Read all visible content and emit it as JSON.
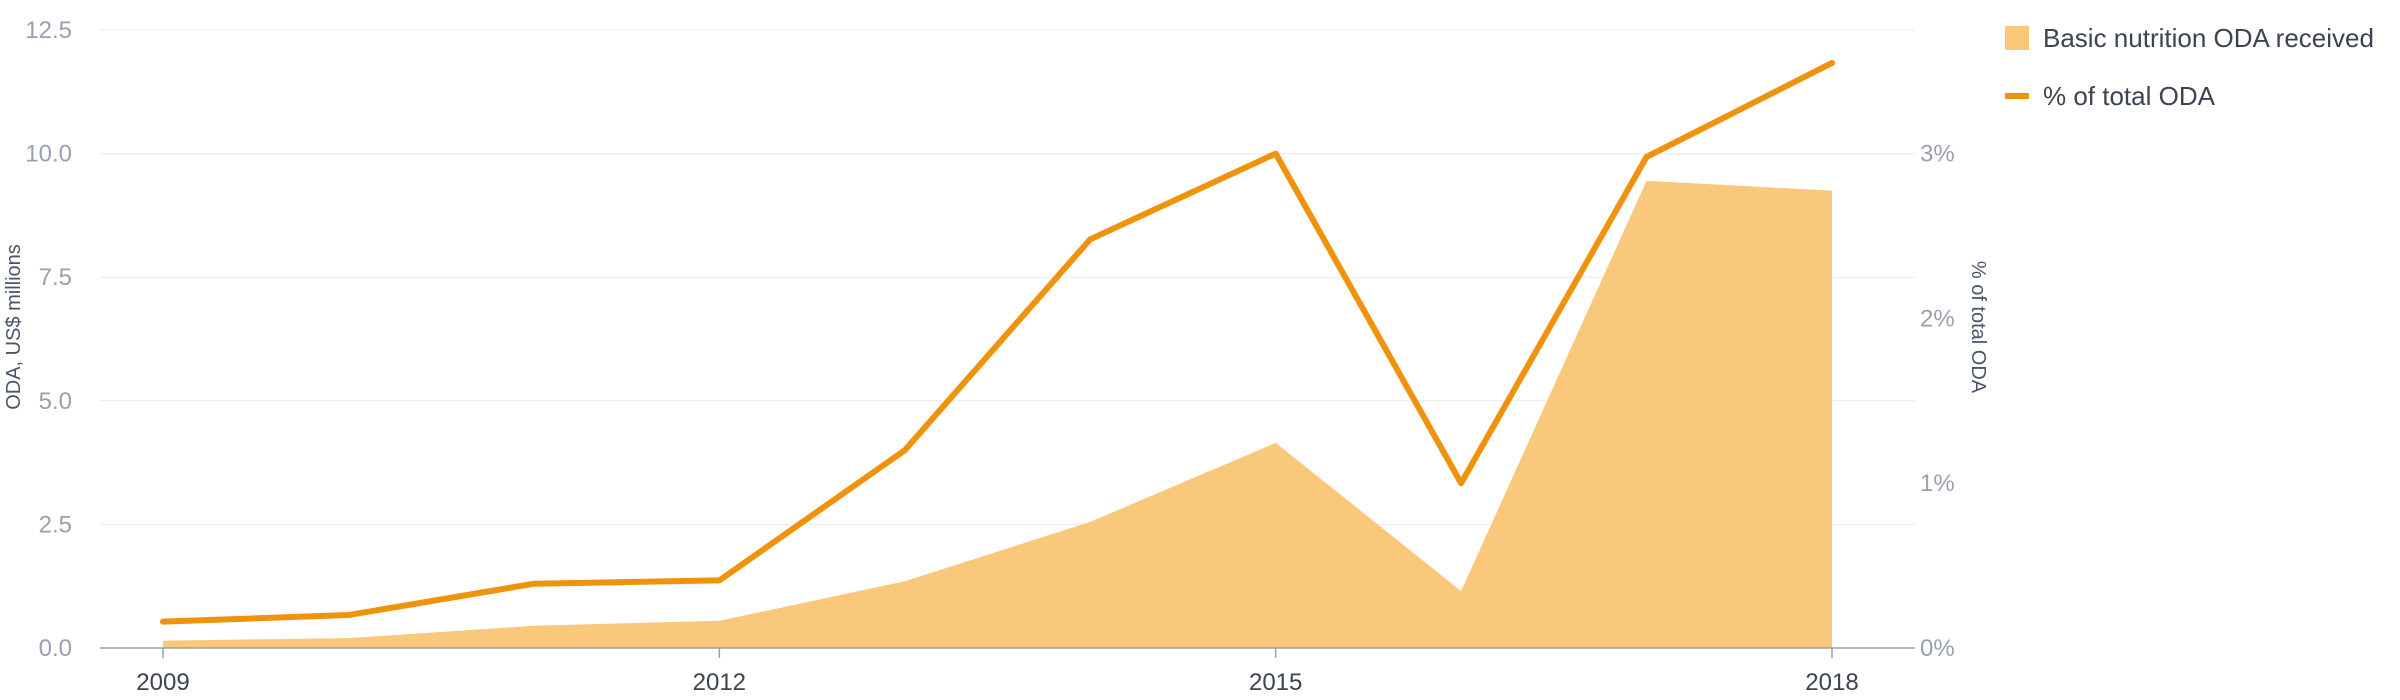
{
  "chart_data": {
    "type": "area",
    "x": [
      2009,
      2010,
      2011,
      2012,
      2013,
      2014,
      2015,
      2016,
      2017,
      2018
    ],
    "x_tick_labels": [
      "2009",
      "2012",
      "2015",
      "2018"
    ],
    "x_tick_values": [
      2009,
      2012,
      2015,
      2018
    ],
    "series": [
      {
        "name": "Basic nutrition ODA received",
        "kind": "area",
        "axis": "left",
        "color": "#fac87a",
        "values": [
          0.15,
          0.2,
          0.45,
          0.55,
          1.35,
          2.55,
          4.15,
          1.15,
          9.45,
          9.25
        ]
      },
      {
        "name": "% of total ODA",
        "kind": "line",
        "axis": "right",
        "color": "#f0930c",
        "values": [
          0.16,
          0.2,
          0.39,
          0.41,
          1.2,
          2.48,
          3.0,
          1.0,
          2.98,
          3.55
        ]
      }
    ],
    "y_left": {
      "label": "ODA, US$ millions",
      "ticks": [
        0,
        2.5,
        5,
        7.5,
        10,
        12.5
      ],
      "tick_labels": [
        "0.0",
        "2.5",
        "5.0",
        "7.5",
        "10.0",
        "12.5"
      ],
      "range": [
        0,
        12.5
      ]
    },
    "y_right": {
      "label": "% of total ODA",
      "ticks": [
        0,
        1,
        2,
        3
      ],
      "tick_labels": [
        "0%",
        "1%",
        "2%",
        "3%"
      ],
      "range": [
        0,
        3.75
      ]
    },
    "grid": true,
    "legend_position": "top-right"
  }
}
